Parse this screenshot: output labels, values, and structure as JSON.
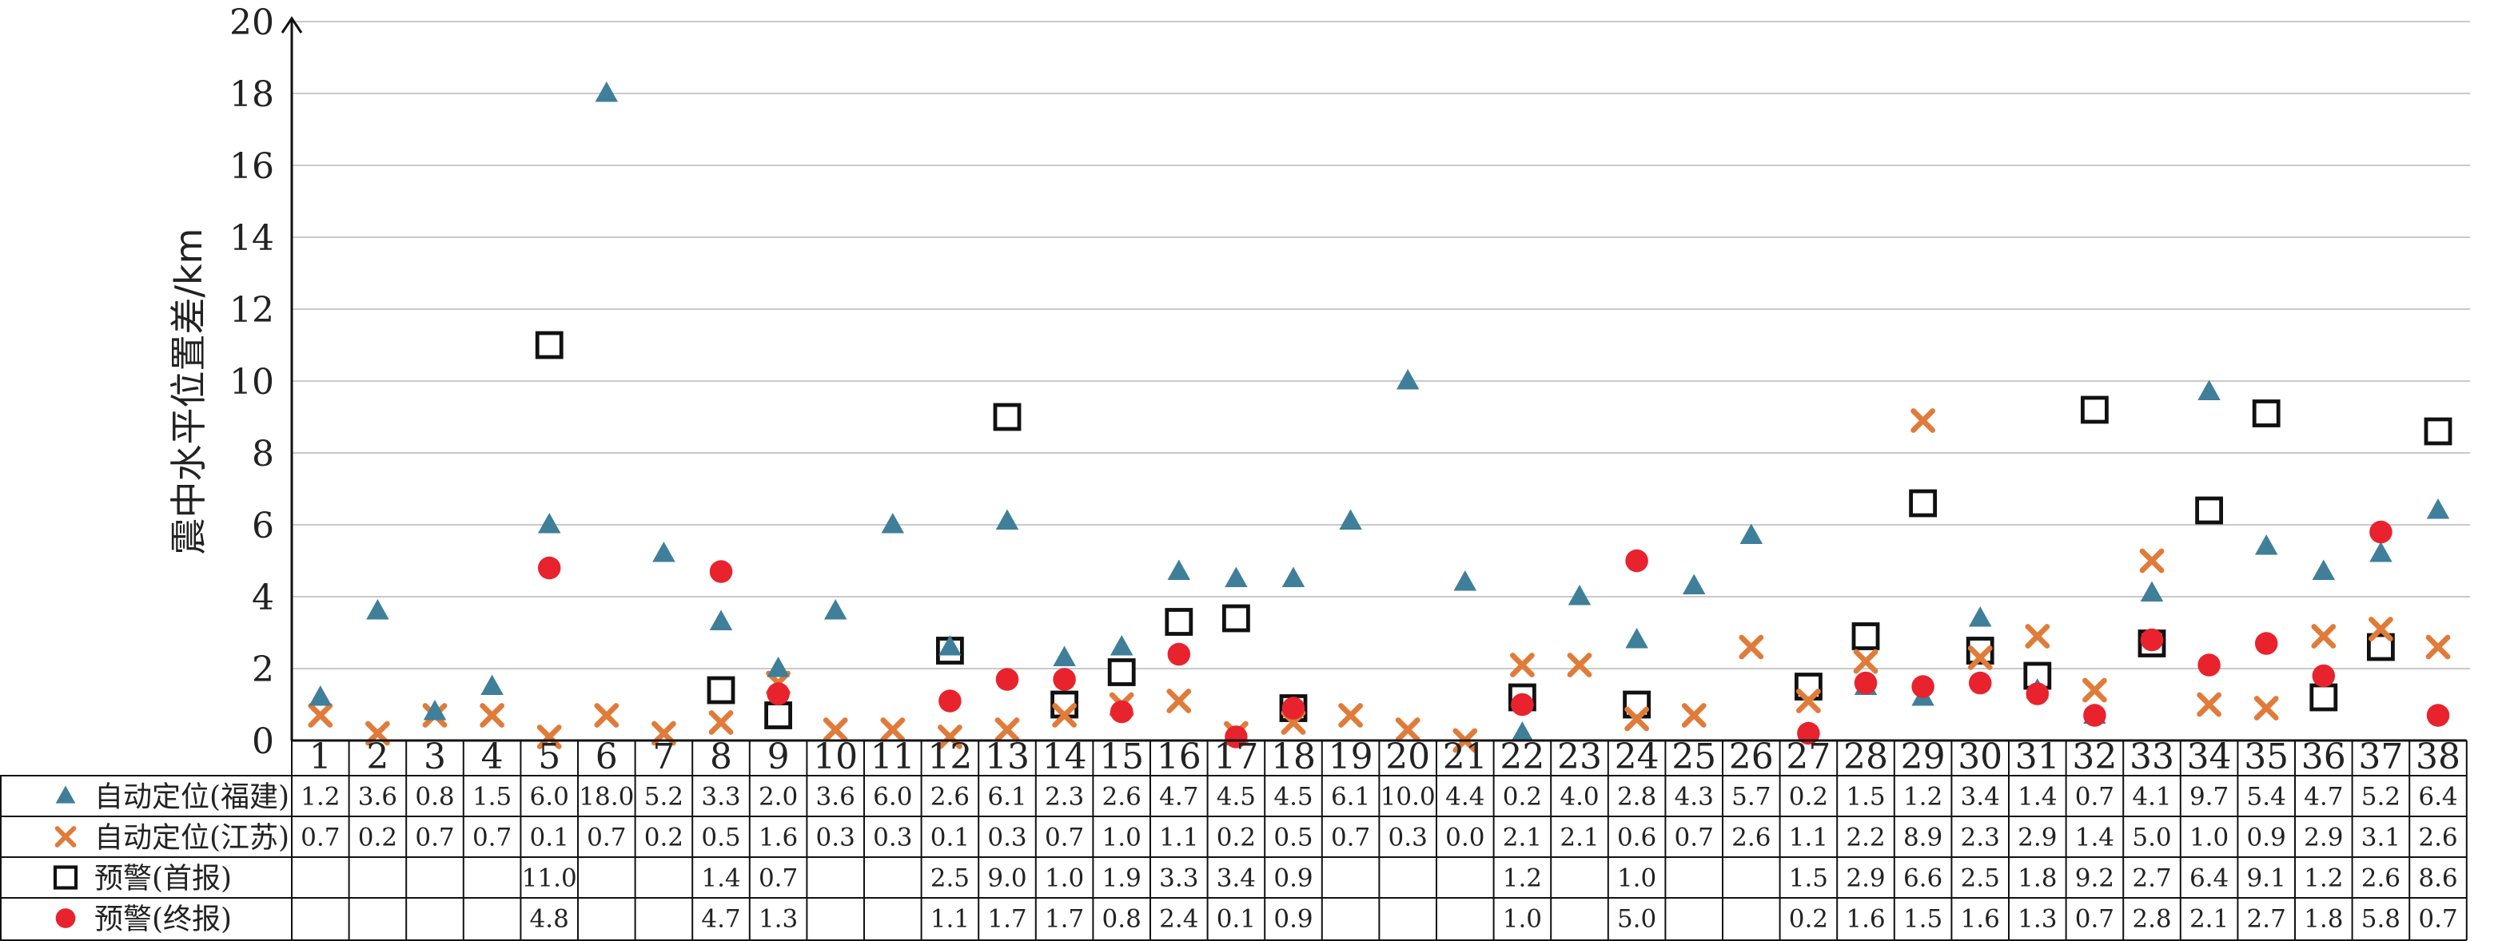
{
  "chart_data": {
    "type": "scatter",
    "ylabel": "震中水平位置差/km",
    "ylim": [
      0,
      20
    ],
    "yticks": [
      0,
      2,
      4,
      6,
      8,
      10,
      12,
      14,
      16,
      18,
      20
    ],
    "grid": "horizontal",
    "legend_placement": "data-table-rows",
    "categories": [
      "1",
      "2",
      "3",
      "4",
      "5",
      "6",
      "7",
      "8",
      "9",
      "10",
      "11",
      "12",
      "13",
      "14",
      "15",
      "16",
      "17",
      "18",
      "19",
      "20",
      "21",
      "22",
      "23",
      "24",
      "25",
      "26",
      "27",
      "28",
      "29",
      "30",
      "31",
      "32",
      "33",
      "34",
      "35",
      "36",
      "37",
      "38"
    ],
    "series": [
      {
        "name": "自动定位(福建)",
        "marker": "triangle",
        "color": "#3f7f99",
        "values": [
          1.2,
          3.6,
          0.8,
          1.5,
          6.0,
          18.0,
          5.2,
          3.3,
          2.0,
          3.6,
          6.0,
          2.6,
          6.1,
          2.3,
          2.6,
          4.7,
          4.5,
          4.5,
          6.1,
          10.0,
          4.4,
          0.2,
          4.0,
          2.8,
          4.3,
          5.7,
          0.2,
          1.5,
          1.2,
          3.4,
          1.4,
          0.7,
          4.1,
          9.7,
          5.4,
          4.7,
          5.2,
          6.4
        ],
        "labels": [
          "1.2",
          "3.6",
          "0.8",
          "1.5",
          "6.0",
          "18.0",
          "5.2",
          "3.3",
          "2.0",
          "3.6",
          "6.0",
          "2.6",
          "6.1",
          "2.3",
          "2.6",
          "4.7",
          "4.5",
          "4.5",
          "6.1",
          "10.0",
          "4.4",
          "0.2",
          "4.0",
          "2.8",
          "4.3",
          "5.7",
          "0.2",
          "1.5",
          "1.2",
          "3.4",
          "1.4",
          "0.7",
          "4.1",
          "9.7",
          "5.4",
          "4.7",
          "5.2",
          "6.4"
        ]
      },
      {
        "name": "自动定位(江苏)",
        "marker": "x",
        "color": "#e07b39",
        "values": [
          0.7,
          0.2,
          0.7,
          0.7,
          0.1,
          0.7,
          0.2,
          0.5,
          1.6,
          0.3,
          0.3,
          0.1,
          0.3,
          0.7,
          1.0,
          1.1,
          0.2,
          0.5,
          0.7,
          0.3,
          0.0,
          2.1,
          2.1,
          0.6,
          0.7,
          2.6,
          1.1,
          2.2,
          8.9,
          2.3,
          2.9,
          1.4,
          5.0,
          1.0,
          0.9,
          2.9,
          3.1,
          2.6
        ],
        "labels": [
          "0.7",
          "0.2",
          "0.7",
          "0.7",
          "0.1",
          "0.7",
          "0.2",
          "0.5",
          "1.6",
          "0.3",
          "0.3",
          "0.1",
          "0.3",
          "0.7",
          "1.0",
          "1.1",
          "0.2",
          "0.5",
          "0.7",
          "0.3",
          "0.0",
          "2.1",
          "2.1",
          "0.6",
          "0.7",
          "2.6",
          "1.1",
          "2.2",
          "8.9",
          "2.3",
          "2.9",
          "1.4",
          "5.0",
          "1.0",
          "0.9",
          "2.9",
          "3.1",
          "2.6"
        ]
      },
      {
        "name": "预警(首报)",
        "marker": "square",
        "color": "#111111",
        "values": [
          null,
          null,
          null,
          null,
          11.0,
          null,
          null,
          1.4,
          0.7,
          null,
          null,
          2.5,
          9.0,
          1.0,
          1.9,
          3.3,
          3.4,
          0.9,
          null,
          null,
          null,
          1.2,
          null,
          1.0,
          null,
          null,
          1.5,
          2.9,
          6.6,
          2.5,
          1.8,
          9.2,
          2.7,
          6.4,
          9.1,
          1.2,
          2.6,
          8.6
        ],
        "labels": [
          "",
          "",
          "",
          "",
          "11.0",
          "",
          "",
          "1.4",
          "0.7",
          "",
          "",
          "2.5",
          "9.0",
          "1.0",
          "1.9",
          "3.3",
          "3.4",
          "0.9",
          "",
          "",
          "",
          "1.2",
          "",
          "1.0",
          "",
          "",
          "1.5",
          "2.9",
          "6.6",
          "2.5",
          "1.8",
          "9.2",
          "2.7",
          "6.4",
          "9.1",
          "1.2",
          "2.6",
          "8.6"
        ]
      },
      {
        "name": "预警(终报)",
        "marker": "circle",
        "color": "#e8232d",
        "values": [
          null,
          null,
          null,
          null,
          4.8,
          null,
          null,
          4.7,
          1.3,
          null,
          null,
          1.1,
          1.7,
          1.7,
          0.8,
          2.4,
          0.1,
          0.9,
          null,
          null,
          null,
          1.0,
          null,
          5.0,
          null,
          null,
          0.2,
          1.6,
          1.5,
          1.6,
          1.3,
          0.7,
          2.8,
          2.1,
          2.7,
          1.8,
          5.8,
          0.7
        ],
        "labels": [
          "",
          "",
          "",
          "",
          "4.8",
          "",
          "",
          "4.7",
          "1.3",
          "",
          "",
          "1.1",
          "1.7",
          "1.7",
          "0.8",
          "2.4",
          "0.1",
          "0.9",
          "",
          "",
          "",
          "1.0",
          "",
          "5.0",
          "",
          "",
          "0.2",
          "1.6",
          "1.5",
          "1.6",
          "1.3",
          "0.7",
          "2.8",
          "2.1",
          "2.7",
          "1.8",
          "5.8",
          "0.7"
        ]
      }
    ]
  }
}
